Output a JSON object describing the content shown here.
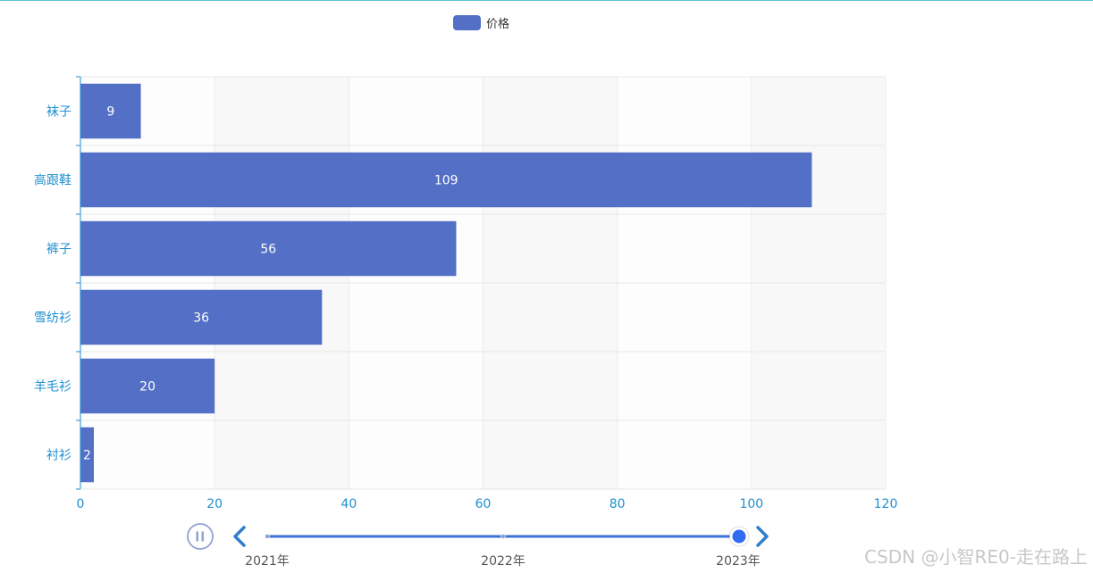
{
  "legend": {
    "label": "价格",
    "color": "#5470c6"
  },
  "chart_data": {
    "type": "bar",
    "orientation": "horizontal",
    "categories": [
      "衬衫",
      "羊毛衫",
      "雪纺衫",
      "裤子",
      "高跟鞋",
      "袜子"
    ],
    "series": [
      {
        "name": "价格",
        "values": [
          2,
          20,
          36,
          56,
          109,
          9
        ],
        "color": "#5470c6"
      }
    ],
    "xlim": [
      0,
      120
    ],
    "xticks": [
      0,
      20,
      40,
      60,
      80,
      100,
      120
    ],
    "grid": true,
    "split_area": true,
    "data_labels": true,
    "legend_position": "top-center",
    "axis_color": "#1f8fd1"
  },
  "timeline": {
    "items": [
      "2021年",
      "2022年",
      "2023年"
    ],
    "current_index": 2,
    "play_state": "playing",
    "accent_color": "#3b73d6"
  },
  "watermark": "CSDN @小智RE0-走在路上"
}
